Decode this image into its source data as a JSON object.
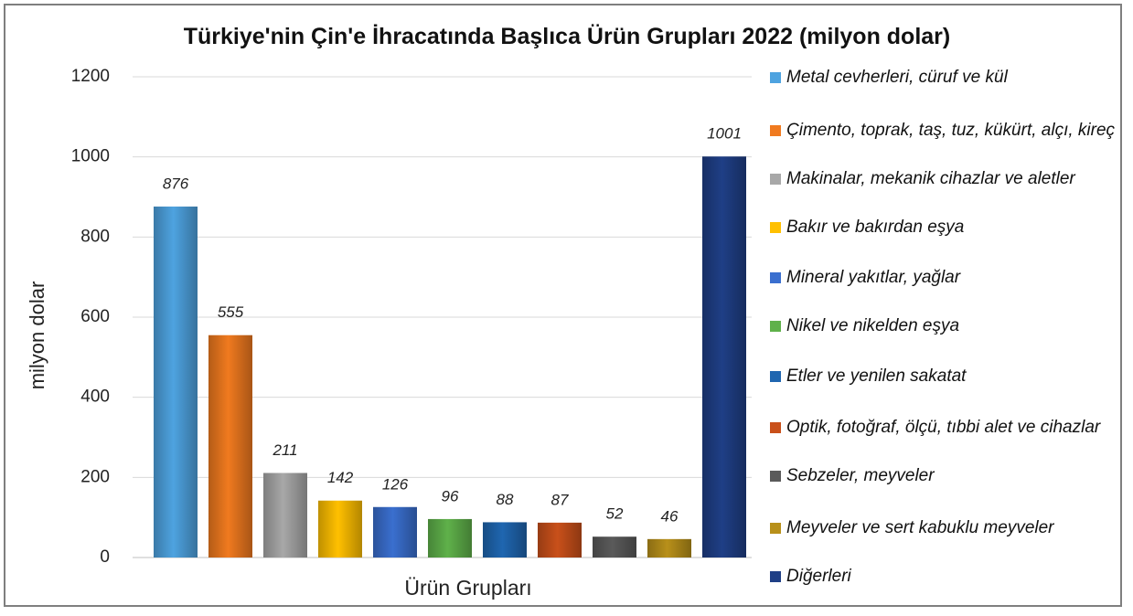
{
  "chart_data": {
    "type": "bar",
    "title": "Türkiye'nin Çin'e İhracatında Başlıca Ürün Grupları 2022 (milyon dolar)",
    "x_label": "Ürün Grupları",
    "y_label": "milyon dolar",
    "categories": [
      "Metal cevherleri, cüruf ve kül",
      "Çimento, toprak, taş, tuz, kükürt, alçı, kireç",
      "Makinalar, mekanik cihazlar ve aletler",
      "Bakır ve bakırdan eşya",
      "Mineral yakıtlar, yağlar",
      "Nikel ve nikelden eşya",
      "Etler ve yenilen sakatat",
      "Optik, fotoğraf, ölçü, tıbbi alet ve cihazlar",
      "Sebzeler, meyveler",
      "Meyveler ve sert kabuklu meyveler",
      "Diğerleri"
    ],
    "values": [
      876,
      555,
      211,
      142,
      126,
      96,
      88,
      87,
      52,
      46,
      1001
    ],
    "colors": [
      "#4ea3e0",
      "#f07a1f",
      "#a8a8a8",
      "#ffc000",
      "#3a6fcf",
      "#5fb14a",
      "#1f66b0",
      "#c9501a",
      "#5a5a5a",
      "#b8901a",
      "#1f3f86"
    ],
    "ylim": [
      0,
      1200
    ],
    "yticks": [
      0,
      200,
      400,
      600,
      800,
      1000,
      1200
    ],
    "grid": true,
    "legend": "right"
  }
}
